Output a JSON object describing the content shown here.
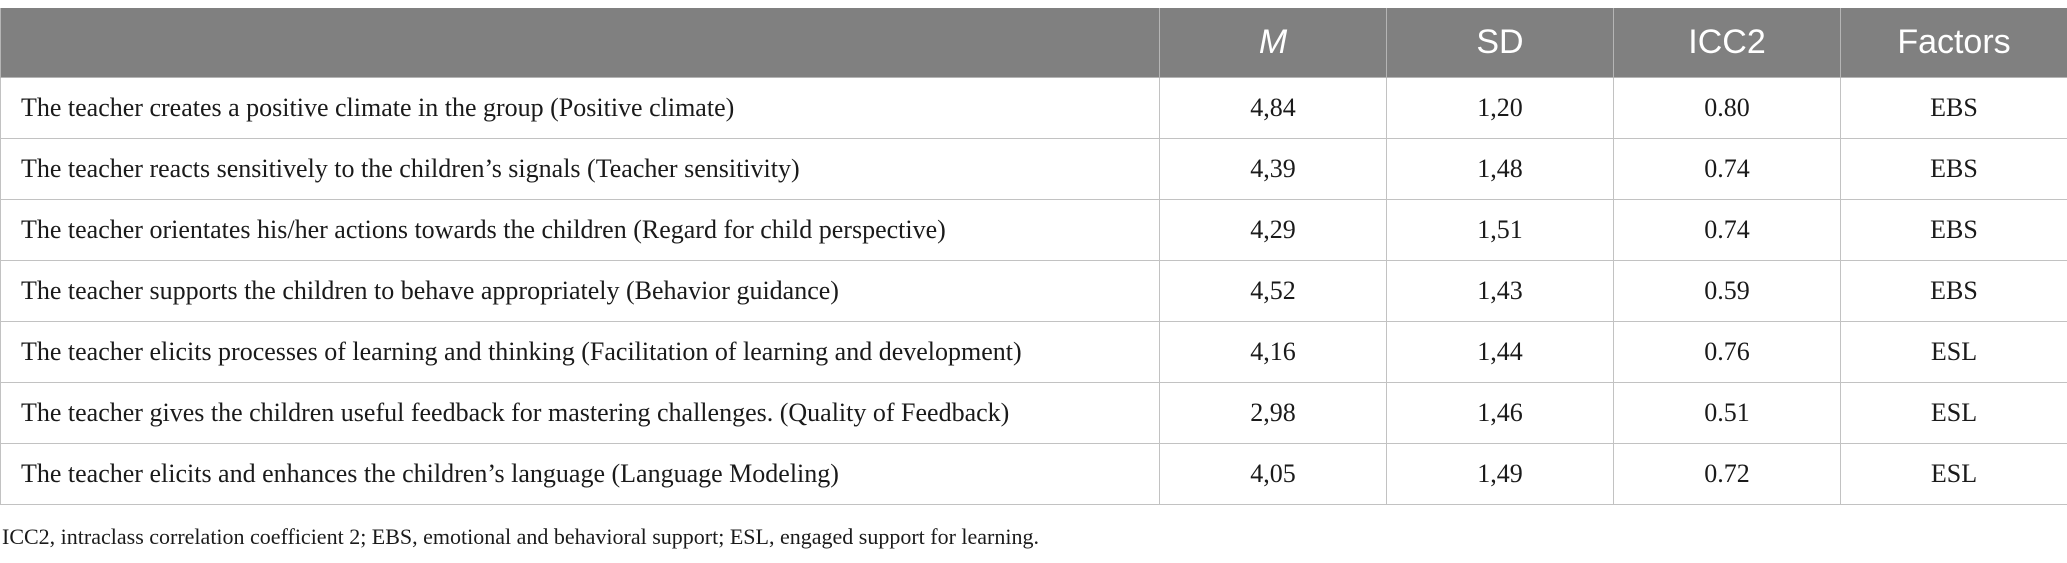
{
  "table": {
    "headers": [
      "",
      "M",
      "SD",
      "ICC2",
      "Factors"
    ],
    "rows": [
      {
        "item": "The teacher creates a positive climate in the group (Positive climate)",
        "m": "4,84",
        "sd": "1,20",
        "icc2": "0.80",
        "factor": "EBS"
      },
      {
        "item": "The teacher reacts sensitively to the children’s signals (Teacher sensitivity)",
        "m": "4,39",
        "sd": "1,48",
        "icc2": "0.74",
        "factor": "EBS"
      },
      {
        "item": "The teacher orientates his/her actions towards the children (Regard for child perspective)",
        "m": "4,29",
        "sd": "1,51",
        "icc2": "0.74",
        "factor": "EBS"
      },
      {
        "item": "The teacher supports the children to behave appropriately (Behavior guidance)",
        "m": "4,52",
        "sd": "1,43",
        "icc2": "0.59",
        "factor": "EBS"
      },
      {
        "item": "The teacher elicits processes of learning and thinking (Facilitation of learning and development)",
        "m": "4,16",
        "sd": "1,44",
        "icc2": "0.76",
        "factor": "ESL"
      },
      {
        "item": "The teacher gives the children useful feedback for mastering challenges. (Quality of Feedback)",
        "m": "2,98",
        "sd": "1,46",
        "icc2": "0.51",
        "factor": "ESL"
      },
      {
        "item": "The teacher elicits and enhances the children’s language (Language Modeling)",
        "m": "4,05",
        "sd": "1,49",
        "icc2": "0.72",
        "factor": "ESL"
      }
    ]
  },
  "note": "ICC2, intraclass correlation coefficient 2; EBS, emotional and behavioral support; ESL, engaged support for learning.",
  "colors": {
    "header_bg": "#808080",
    "header_text": "#ffffff",
    "border": "#c2c2c2"
  }
}
